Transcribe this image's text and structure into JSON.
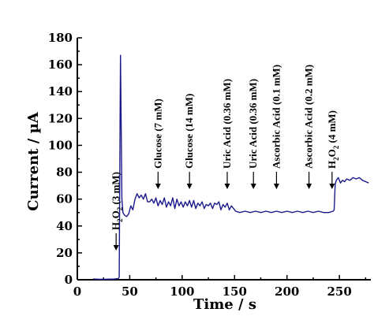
{
  "chart_data": {
    "type": "line",
    "xlabel": "Time / s",
    "ylabel": "Current / µA",
    "xlim": [
      0,
      280
    ],
    "ylim": [
      0,
      180
    ],
    "xticks": [
      0,
      50,
      100,
      150,
      200,
      250
    ],
    "yticks": [
      0,
      20,
      40,
      60,
      80,
      100,
      120,
      140,
      160,
      180
    ],
    "grid": false,
    "series": [
      {
        "color": "#1a1a8c",
        "points": [
          [
            15,
            0.5
          ],
          [
            25,
            0.3
          ],
          [
            35,
            0.5
          ],
          [
            39,
            0.8
          ],
          [
            40,
            2
          ],
          [
            40.8,
            120
          ],
          [
            41.2,
            167
          ],
          [
            41.8,
            120
          ],
          [
            42.5,
            60
          ],
          [
            43.5,
            50
          ],
          [
            45,
            48
          ],
          [
            47,
            47
          ],
          [
            49,
            49
          ],
          [
            51,
            55
          ],
          [
            53,
            52
          ],
          [
            55,
            60
          ],
          [
            57,
            64
          ],
          [
            59,
            61
          ],
          [
            61,
            63
          ],
          [
            63,
            60
          ],
          [
            65,
            64
          ],
          [
            67,
            58
          ],
          [
            69,
            58
          ],
          [
            71,
            60
          ],
          [
            73,
            57
          ],
          [
            75,
            61
          ],
          [
            77,
            55
          ],
          [
            79,
            59
          ],
          [
            81,
            56
          ],
          [
            83,
            61
          ],
          [
            85,
            54
          ],
          [
            87,
            58
          ],
          [
            89,
            55
          ],
          [
            91,
            61
          ],
          [
            93,
            53
          ],
          [
            95,
            60
          ],
          [
            97,
            55
          ],
          [
            99,
            58
          ],
          [
            101,
            54
          ],
          [
            103,
            58
          ],
          [
            105,
            55
          ],
          [
            107,
            59
          ],
          [
            109,
            54
          ],
          [
            111,
            59
          ],
          [
            113,
            53
          ],
          [
            115,
            57
          ],
          [
            117,
            55
          ],
          [
            119,
            58
          ],
          [
            121,
            53
          ],
          [
            123,
            56
          ],
          [
            125,
            55
          ],
          [
            127,
            57
          ],
          [
            129,
            53
          ],
          [
            131,
            57
          ],
          [
            133,
            56
          ],
          [
            135,
            58
          ],
          [
            137,
            52
          ],
          [
            139,
            56
          ],
          [
            141,
            54
          ],
          [
            143,
            57
          ],
          [
            145,
            52
          ],
          [
            147,
            55
          ],
          [
            149,
            53
          ],
          [
            151,
            51
          ],
          [
            155,
            50
          ],
          [
            160,
            51
          ],
          [
            165,
            50
          ],
          [
            170,
            51
          ],
          [
            175,
            50
          ],
          [
            180,
            51
          ],
          [
            185,
            50
          ],
          [
            190,
            51
          ],
          [
            195,
            50
          ],
          [
            200,
            51
          ],
          [
            205,
            50
          ],
          [
            210,
            51
          ],
          [
            215,
            50
          ],
          [
            220,
            51
          ],
          [
            225,
            50
          ],
          [
            230,
            51
          ],
          [
            235,
            50
          ],
          [
            240,
            50
          ],
          [
            244,
            51
          ],
          [
            245,
            52
          ],
          [
            246,
            71
          ],
          [
            247,
            74
          ],
          [
            249,
            76
          ],
          [
            251,
            72
          ],
          [
            253,
            74
          ],
          [
            255,
            73
          ],
          [
            257,
            75
          ],
          [
            260,
            74
          ],
          [
            263,
            76
          ],
          [
            266,
            75
          ],
          [
            269,
            76
          ],
          [
            272,
            74
          ],
          [
            275,
            73
          ],
          [
            278,
            72
          ]
        ]
      }
    ],
    "annotations": [
      {
        "label": "H2O2 (3 mM)",
        "x": 37,
        "is_h2o2": true,
        "conc": "(3 mM)"
      },
      {
        "label": "Glucose (7 mM)",
        "x": 77
      },
      {
        "label": "Glucose (14 mM)",
        "x": 107
      },
      {
        "label": "Uric Acid (0.36 mM)",
        "x": 143
      },
      {
        "label": "Uric Acid (0.36 mM)",
        "x": 168
      },
      {
        "label": "Ascorbic Acid (0.1 mM)",
        "x": 190
      },
      {
        "label": "Ascorbic Acid (0.2 mM)",
        "x": 221
      },
      {
        "label": "H2O2 (4 mM)",
        "x": 243,
        "is_h2o2": true,
        "conc": "(4 mM)"
      }
    ]
  }
}
